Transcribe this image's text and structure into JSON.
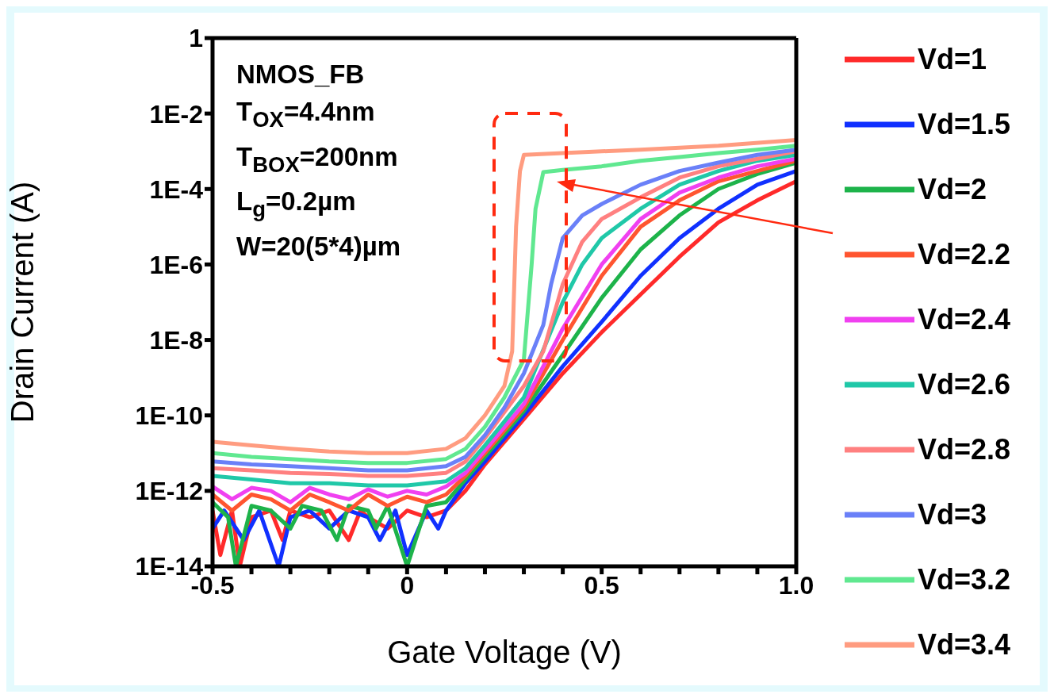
{
  "chart_data": {
    "type": "line",
    "xlabel": "Gate Voltage (V)",
    "ylabel": "Drain Current (A)",
    "annotations": [
      "NMOS_FB",
      "T$_{OX}$=4.4nm",
      "T$_{BOX}$=200nm",
      "L$_{g}$=0.2µm",
      "W=20(5*4)µm"
    ],
    "log": "y",
    "grid": false,
    "legend": "right",
    "marker": "none",
    "line_style": "solid",
    "xlim": [
      -0.5,
      1
    ],
    "xticks": [
      -0.5,
      {
        "value": -0.4,
        "label": null
      },
      {
        "value": -0.3,
        "label": null
      },
      {
        "value": -0.2,
        "label": null
      },
      {
        "value": -0.1,
        "label": null
      },
      0,
      {
        "value": 0.1,
        "label": null
      },
      {
        "value": 0.2,
        "label": null
      },
      {
        "value": 0.3,
        "label": null
      },
      {
        "value": 0.4,
        "label": null
      },
      0.5,
      {
        "value": 0.6,
        "label": null
      },
      {
        "value": 0.7,
        "label": null
      },
      {
        "value": 0.8,
        "label": null
      },
      {
        "value": 0.9,
        "label": null
      },
      {
        "value": 1,
        "label": "1.0"
      }
    ],
    "ylim": [
      1e-14,
      1
    ],
    "yticks": [
      {
        "value": 1e-14,
        "label": "1E-14"
      },
      {
        "value": 1e-12,
        "label": "1E-12"
      },
      {
        "value": 1e-10,
        "label": "1E-10"
      },
      {
        "value": 1e-08,
        "label": "1E-8"
      },
      {
        "value": 1e-06,
        "label": "1E-6"
      },
      {
        "value": 0.0001,
        "label": "1E-4"
      },
      {
        "value": 0.01,
        "label": "1E-2"
      },
      1
    ],
    "series": [
      {
        "name": "Vd=1",
        "color": "#ff2a2a",
        "x": [
          -0.5,
          -0.48,
          -0.45,
          -0.43,
          -0.4,
          -0.35,
          -0.32,
          -0.3,
          -0.25,
          -0.2,
          -0.15,
          -0.12,
          -0.1,
          -0.05,
          0,
          0.05,
          0.1,
          0.15,
          0.2,
          0.3,
          0.4,
          0.5,
          0.6,
          0.7,
          0.8,
          0.9,
          1.0
        ],
        "values": [
          3e-13,
          2e-14,
          3e-13,
          1e-14,
          2e-13,
          3e-13,
          5e-14,
          3e-13,
          2e-13,
          3e-13,
          5e-14,
          3e-13,
          2e-13,
          1e-13,
          3e-13,
          2e-13,
          3e-13,
          1e-12,
          5e-12,
          8e-11,
          1.3e-09,
          1.6e-08,
          1.6e-07,
          1.6e-06,
          1.3e-05,
          5e-05,
          0.00016
        ]
      },
      {
        "name": "Vd=1.5",
        "color": "#1030ff",
        "x": [
          -0.5,
          -0.47,
          -0.42,
          -0.38,
          -0.33,
          -0.3,
          -0.25,
          -0.2,
          -0.15,
          -0.1,
          -0.07,
          -0.03,
          0,
          0.05,
          0.08,
          0.1,
          0.15,
          0.2,
          0.3,
          0.4,
          0.5,
          0.6,
          0.7,
          0.8,
          0.9,
          1.0
        ],
        "values": [
          1e-13,
          3e-13,
          5e-14,
          3e-13,
          1e-14,
          2e-13,
          3e-13,
          1e-13,
          3e-13,
          2e-13,
          5e-14,
          3e-13,
          2e-14,
          3e-13,
          1e-13,
          3e-13,
          1.6e-12,
          6e-12,
          1e-10,
          2e-09,
          3e-08,
          5e-07,
          5e-06,
          3e-05,
          0.00013,
          0.0003
        ]
      },
      {
        "name": "Vd=2",
        "color": "#1db34a",
        "x": [
          -0.5,
          -0.46,
          -0.44,
          -0.4,
          -0.35,
          -0.3,
          -0.27,
          -0.22,
          -0.18,
          -0.15,
          -0.1,
          -0.08,
          -0.05,
          0,
          0.05,
          0.1,
          0.15,
          0.2,
          0.3,
          0.4,
          0.5,
          0.6,
          0.7,
          0.8,
          0.9,
          1.0
        ],
        "values": [
          5e-13,
          2e-13,
          1e-14,
          4e-13,
          3e-13,
          1e-13,
          4e-13,
          3e-13,
          5e-14,
          4e-13,
          3e-13,
          1e-13,
          4e-13,
          1e-14,
          4e-13,
          5e-13,
          2e-12,
          8e-12,
          1.3e-10,
          4e-09,
          1.3e-07,
          2.5e-06,
          2e-05,
          0.0001,
          0.00025,
          0.0005
        ]
      },
      {
        "name": "Vd=2.2",
        "color": "#ff5530",
        "x": [
          -0.5,
          -0.45,
          -0.4,
          -0.35,
          -0.3,
          -0.25,
          -0.2,
          -0.15,
          -0.1,
          -0.05,
          0,
          0.05,
          0.1,
          0.15,
          0.2,
          0.3,
          0.4,
          0.5,
          0.6,
          0.7,
          0.8,
          0.9,
          1.0
        ],
        "values": [
          8e-13,
          3e-13,
          8e-13,
          6e-13,
          3e-13,
          8e-13,
          5e-13,
          3e-13,
          8e-13,
          4e-13,
          7e-13,
          5e-13,
          8e-13,
          2.5e-12,
          1e-11,
          1.6e-10,
          1e-08,
          5e-07,
          1e-05,
          5e-05,
          0.00016,
          0.0003,
          0.00056
        ]
      },
      {
        "name": "Vd=2.4",
        "color": "#f040f0",
        "x": [
          -0.5,
          -0.45,
          -0.4,
          -0.35,
          -0.3,
          -0.25,
          -0.2,
          -0.15,
          -0.1,
          -0.05,
          0,
          0.05,
          0.1,
          0.15,
          0.2,
          0.3,
          0.4,
          0.5,
          0.6,
          0.7,
          0.8,
          0.9,
          1.0
        ],
        "values": [
          1.3e-12,
          6e-13,
          1.2e-12,
          1e-12,
          5e-13,
          1.2e-12,
          8e-13,
          6e-13,
          1.1e-12,
          7e-13,
          1e-12,
          8e-13,
          1.3e-12,
          3e-12,
          1.2e-11,
          2e-10,
          2e-08,
          1e-06,
          1.6e-05,
          8e-05,
          0.0002,
          0.0004,
          0.00063
        ]
      },
      {
        "name": "Vd=2.6",
        "color": "#20c8a8",
        "x": [
          -0.5,
          -0.4,
          -0.3,
          -0.2,
          -0.1,
          0,
          0.1,
          0.15,
          0.2,
          0.3,
          0.4,
          0.45,
          0.5,
          0.6,
          0.7,
          0.8,
          0.9,
          1.0
        ],
        "values": [
          2.5e-12,
          2e-12,
          1.6e-12,
          1.6e-12,
          1.4e-12,
          1.4e-12,
          1.8e-12,
          4e-12,
          1.6e-11,
          3e-10,
          1e-07,
          1e-06,
          5e-06,
          3e-05,
          0.00013,
          0.0003,
          0.00056,
          0.0008
        ]
      },
      {
        "name": "Vd=2.8",
        "color": "#ff8080",
        "x": [
          -0.5,
          -0.4,
          -0.3,
          -0.2,
          -0.1,
          0,
          0.1,
          0.15,
          0.2,
          0.3,
          0.35,
          0.4,
          0.45,
          0.5,
          0.6,
          0.7,
          0.8,
          0.9,
          1.0
        ],
        "values": [
          4e-12,
          3.5e-12,
          3e-12,
          2.8e-12,
          2.5e-12,
          2.5e-12,
          3e-12,
          6e-12,
          2.5e-11,
          6e-10,
          5e-09,
          3e-07,
          4e-06,
          1.6e-05,
          6e-05,
          0.0002,
          0.0004,
          0.00063,
          0.001
        ]
      },
      {
        "name": "Vd=3",
        "color": "#6a80f8",
        "x": [
          -0.5,
          -0.4,
          -0.3,
          -0.2,
          -0.1,
          0,
          0.1,
          0.15,
          0.2,
          0.25,
          0.3,
          0.35,
          0.37,
          0.4,
          0.45,
          0.5,
          0.6,
          0.7,
          0.8,
          0.9,
          1.0
        ],
        "values": [
          6e-12,
          5e-12,
          4.5e-12,
          4e-12,
          3.5e-12,
          3.5e-12,
          4.5e-12,
          8e-12,
          3e-11,
          1.6e-10,
          1.3e-09,
          2.5e-08,
          3e-07,
          5e-06,
          2e-05,
          4e-05,
          0.00013,
          0.0003,
          0.0005,
          0.0008,
          0.0011
        ]
      },
      {
        "name": "Vd=3.2",
        "color": "#60e890",
        "x": [
          -0.5,
          -0.4,
          -0.3,
          -0.2,
          -0.1,
          0,
          0.1,
          0.15,
          0.2,
          0.25,
          0.3,
          0.32,
          0.33,
          0.35,
          0.4,
          0.5,
          0.6,
          0.7,
          0.8,
          0.9,
          1.0
        ],
        "values": [
          1e-11,
          8e-12,
          7e-12,
          6e-12,
          5.5e-12,
          5.5e-12,
          7e-12,
          1.3e-11,
          5e-11,
          3e-10,
          3e-09,
          1e-06,
          3e-05,
          0.00028,
          0.00032,
          0.0004,
          0.00056,
          0.0007,
          0.0009,
          0.0011,
          0.0014
        ]
      },
      {
        "name": "Vd=3.4",
        "color": "#ff9c80",
        "x": [
          -0.5,
          -0.4,
          -0.3,
          -0.2,
          -0.1,
          0,
          0.1,
          0.15,
          0.2,
          0.25,
          0.27,
          0.28,
          0.29,
          0.3,
          0.4,
          0.6,
          0.8,
          1.0
        ],
        "values": [
          2e-11,
          1.6e-11,
          1.3e-11,
          1.1e-11,
          1e-11,
          1e-11,
          1.3e-11,
          2.5e-11,
          1e-10,
          6e-10,
          5e-09,
          1e-05,
          0.0003,
          0.0008,
          0.0009,
          0.0011,
          0.0014,
          0.002
        ]
      }
    ]
  }
}
